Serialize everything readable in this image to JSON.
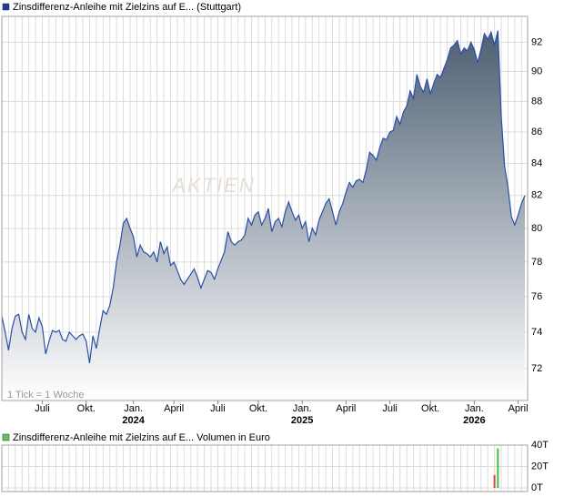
{
  "chart_data": [
    {
      "type": "area",
      "title": "Zinsdifferenz-Anleihe mit Zielzins auf E... (Stuttgart)",
      "note": "1 Tick = 1 Woche",
      "watermark": "AKTIEN",
      "log_scale": true,
      "grid": true,
      "color": "#2b4ea8",
      "fill_color": "#4d5f73",
      "legend_color": "#1f3d99",
      "categories": [
        null,
        null,
        null,
        null,
        null,
        null,
        null,
        null,
        null,
        null,
        null,
        null,
        "Juli",
        null,
        null,
        null,
        null,
        null,
        null,
        null,
        null,
        null,
        null,
        null,
        null,
        "Okt.",
        null,
        null,
        null,
        null,
        null,
        null,
        null,
        null,
        null,
        null,
        null,
        null,
        null,
        "Jan. 2024",
        null,
        null,
        null,
        null,
        null,
        null,
        null,
        null,
        null,
        null,
        null,
        "April",
        null,
        null,
        null,
        null,
        null,
        null,
        null,
        null,
        null,
        null,
        null,
        null,
        "Juli",
        null,
        null,
        null,
        null,
        null,
        null,
        null,
        null,
        null,
        null,
        null,
        "Okt.",
        null,
        null,
        null,
        null,
        null,
        null,
        null,
        null,
        null,
        null,
        null,
        null,
        "Jan. 2025",
        null,
        null,
        null,
        null,
        null,
        null,
        null,
        null,
        null,
        null,
        null,
        null,
        "April",
        null,
        null,
        null,
        null,
        null,
        null,
        null,
        null,
        null,
        null,
        null,
        null,
        "Juli",
        null,
        null,
        null,
        null,
        null,
        null,
        null,
        null,
        null,
        null,
        null,
        "Okt.",
        null,
        null,
        null,
        null,
        null,
        null,
        null,
        null,
        null,
        null,
        null,
        null,
        "Jan. 2026",
        null,
        null,
        null,
        null,
        null,
        null,
        null,
        null,
        null,
        null,
        null,
        null,
        "April",
        null,
        null
      ],
      "values": [
        74.9,
        74.0,
        73.0,
        74.2,
        74.9,
        75.0,
        74.0,
        73.6,
        75.0,
        74.2,
        74.0,
        74.8,
        74.3,
        72.8,
        73.5,
        74.1,
        74.0,
        74.1,
        73.6,
        73.5,
        74.0,
        73.8,
        73.6,
        73.8,
        73.9,
        73.5,
        72.3,
        73.8,
        73.1,
        74.2,
        75.2,
        75.0,
        75.5,
        76.5,
        78.0,
        79.0,
        80.3,
        80.6,
        80.0,
        79.5,
        78.3,
        79.0,
        78.6,
        78.5,
        78.3,
        78.6,
        78.0,
        79.2,
        78.5,
        78.9,
        77.8,
        78.0,
        77.5,
        77.0,
        76.7,
        77.0,
        77.3,
        77.6,
        77.1,
        76.5,
        77.0,
        77.5,
        77.4,
        77.0,
        77.6,
        78.1,
        78.6,
        79.8,
        79.2,
        79.0,
        79.2,
        79.3,
        79.6,
        80.6,
        80.2,
        80.8,
        81.0,
        80.2,
        80.6,
        81.2,
        79.8,
        80.4,
        80.6,
        80.1,
        81.0,
        81.6,
        81.0,
        80.5,
        80.8,
        80.0,
        80.4,
        79.2,
        80.0,
        79.6,
        80.5,
        81.0,
        81.5,
        81.8,
        81.0,
        80.2,
        81.0,
        81.5,
        82.2,
        82.8,
        82.5,
        82.9,
        83.0,
        82.8,
        83.6,
        84.7,
        84.5,
        84.2,
        85.0,
        85.6,
        85.5,
        86.0,
        86.1,
        87.0,
        86.5,
        87.3,
        87.7,
        88.7,
        88.2,
        89.8,
        89.0,
        88.6,
        89.5,
        88.5,
        89.2,
        89.8,
        89.6,
        90.2,
        90.8,
        91.6,
        91.8,
        92.1,
        91.2,
        91.6,
        91.4,
        92.0,
        91.5,
        90.6,
        91.5,
        92.6,
        92.2,
        92.7,
        91.8,
        92.8,
        87.0,
        83.8,
        82.5,
        80.7,
        80.2,
        80.8,
        81.5,
        82.0
      ],
      "ylim": [
        70.3,
        93.8
      ],
      "yticks": [
        72,
        74,
        76,
        78,
        80,
        82,
        84,
        86,
        88,
        90,
        92
      ]
    },
    {
      "type": "bar",
      "title": "Zinsdifferenz-Anleihe mit Zielzins auf E... Volumen in Euro",
      "legend_color": "#5cc85c",
      "up_color": "#3fc03f",
      "down_color": "#e04040",
      "grid": true,
      "values": [
        null,
        null,
        null,
        null,
        null,
        null,
        null,
        null,
        null,
        null,
        null,
        null,
        null,
        null,
        null,
        null,
        null,
        null,
        null,
        null,
        null,
        null,
        null,
        null,
        null,
        null,
        null,
        null,
        null,
        null,
        null,
        null,
        null,
        null,
        null,
        null,
        null,
        null,
        null,
        null,
        null,
        null,
        null,
        null,
        null,
        null,
        null,
        null,
        null,
        null,
        null,
        null,
        null,
        null,
        null,
        null,
        null,
        null,
        null,
        null,
        null,
        null,
        null,
        null,
        null,
        null,
        null,
        null,
        null,
        null,
        null,
        null,
        null,
        null,
        null,
        null,
        null,
        null,
        null,
        null,
        null,
        null,
        null,
        null,
        null,
        null,
        null,
        null,
        null,
        null,
        null,
        null,
        null,
        null,
        null,
        null,
        null,
        null,
        null,
        null,
        null,
        null,
        null,
        null,
        null,
        null,
        null,
        null,
        null,
        null,
        null,
        null,
        null,
        null,
        null,
        null,
        null,
        null,
        null,
        null,
        null,
        null,
        null,
        null,
        null,
        null,
        null,
        null,
        null,
        null,
        null,
        null,
        null,
        null,
        null,
        null,
        null,
        null,
        null,
        null,
        null,
        null,
        null,
        null,
        null,
        null,
        12,
        37,
        null,
        null,
        null,
        null,
        null,
        null,
        null,
        null
      ],
      "ylim": [
        -3.4,
        40
      ],
      "yticks": [
        {
          "value": 0,
          "label": "0T"
        },
        {
          "value": 20,
          "label": "20T"
        },
        {
          "value": 40,
          "label": "40T"
        }
      ]
    }
  ]
}
